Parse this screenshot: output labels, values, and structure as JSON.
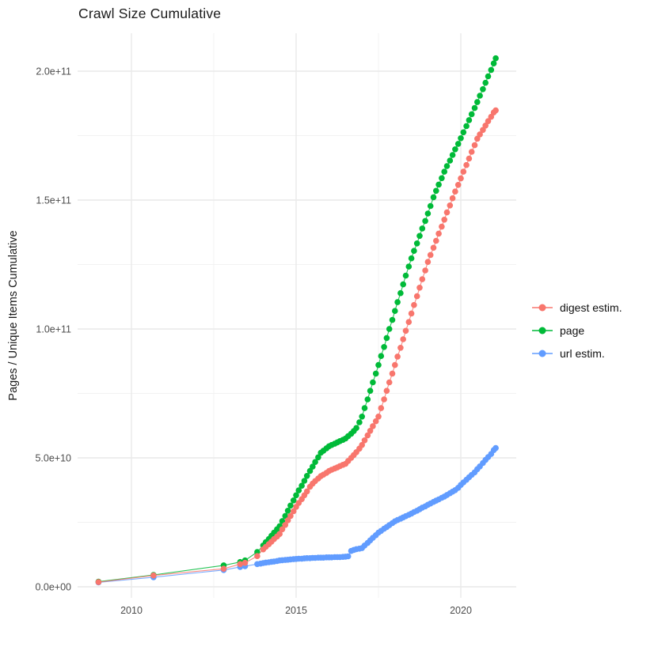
{
  "chart": {
    "title": "Crawl Size Cumulative",
    "y_axis_title": "Pages / Unique Items Cumulative",
    "colors": {
      "digest": "#F8766D",
      "page": "#00BA38",
      "url": "#619CFF",
      "grid_major": "#E9E9E9",
      "grid_minor": "#F2F2F2",
      "tick_text": "#4D4D4D",
      "background": "#FFFFFF"
    }
  },
  "chart_data": {
    "type": "line",
    "title": "Crawl Size Cumulative",
    "xlabel": "",
    "ylabel": "Pages / Unique Items Cumulative",
    "x_unit": "year",
    "value_unit": "1e9 (billions of pages / unique items)",
    "xlim": [
      2008.6,
      2021.6
    ],
    "ylim": [
      0,
      215000000000.0
    ],
    "grid": true,
    "legend_position": "right",
    "x_major_ticks": [
      2010,
      2015,
      2020
    ],
    "x_minor_ticks": [
      2012.5,
      2017.5
    ],
    "x_tick_labels": [
      "2010",
      "2015",
      "2020"
    ],
    "y_major_ticks_e9": [
      0,
      50,
      100,
      150,
      200
    ],
    "y_minor_ticks_e9": [
      25,
      75,
      125,
      175
    ],
    "y_tick_labels": [
      "0.0e+00",
      "5.0e+10",
      "1.0e+11",
      "1.5e+11",
      "2.0e+11"
    ],
    "series": [
      {
        "name": "url estim.",
        "color": "#619CFF",
        "points_year_value_e9": [
          [
            2009.0,
            1.7
          ],
          [
            2010.67,
            3.7
          ],
          [
            2012.8,
            6.5
          ],
          [
            2013.3,
            7.7
          ],
          [
            2013.45,
            8.0
          ],
          [
            2013.82,
            8.8
          ],
          [
            2013.92,
            9.0
          ],
          [
            2014.0,
            9.2
          ],
          [
            2014.08,
            9.4
          ],
          [
            2014.17,
            9.5
          ],
          [
            2014.25,
            9.7
          ],
          [
            2014.33,
            9.8
          ],
          [
            2014.42,
            10.0
          ],
          [
            2014.5,
            10.2
          ],
          [
            2014.58,
            10.3
          ],
          [
            2014.67,
            10.4
          ],
          [
            2014.75,
            10.5
          ],
          [
            2014.83,
            10.6
          ],
          [
            2014.92,
            10.7
          ],
          [
            2015.0,
            10.8
          ],
          [
            2015.08,
            10.9
          ],
          [
            2015.17,
            10.9
          ],
          [
            2015.25,
            11.0
          ],
          [
            2015.33,
            11.1
          ],
          [
            2015.42,
            11.1
          ],
          [
            2015.5,
            11.2
          ],
          [
            2015.58,
            11.2
          ],
          [
            2015.67,
            11.3
          ],
          [
            2015.75,
            11.3
          ],
          [
            2015.83,
            11.3
          ],
          [
            2015.92,
            11.4
          ],
          [
            2016.0,
            11.4
          ],
          [
            2016.08,
            11.4
          ],
          [
            2016.17,
            11.5
          ],
          [
            2016.25,
            11.5
          ],
          [
            2016.33,
            11.5
          ],
          [
            2016.42,
            11.6
          ],
          [
            2016.5,
            11.7
          ],
          [
            2016.58,
            11.8
          ],
          [
            2016.67,
            13.9
          ],
          [
            2016.75,
            14.3
          ],
          [
            2016.83,
            14.6
          ],
          [
            2016.92,
            14.8
          ],
          [
            2017.0,
            15.0
          ],
          [
            2017.08,
            16.0
          ],
          [
            2017.17,
            17.0
          ],
          [
            2017.25,
            18.0
          ],
          [
            2017.33,
            19.0
          ],
          [
            2017.42,
            20.0
          ],
          [
            2017.5,
            21.0
          ],
          [
            2017.58,
            21.7
          ],
          [
            2017.67,
            22.5
          ],
          [
            2017.75,
            23.2
          ],
          [
            2017.83,
            23.9
          ],
          [
            2017.92,
            24.7
          ],
          [
            2018.0,
            25.4
          ],
          [
            2018.08,
            25.9
          ],
          [
            2018.17,
            26.4
          ],
          [
            2018.25,
            26.9
          ],
          [
            2018.33,
            27.4
          ],
          [
            2018.42,
            27.9
          ],
          [
            2018.5,
            28.4
          ],
          [
            2018.58,
            29.0
          ],
          [
            2018.67,
            29.5
          ],
          [
            2018.75,
            30.1
          ],
          [
            2018.83,
            30.7
          ],
          [
            2018.92,
            31.2
          ],
          [
            2019.0,
            31.8
          ],
          [
            2019.08,
            32.3
          ],
          [
            2019.17,
            32.9
          ],
          [
            2019.25,
            33.4
          ],
          [
            2019.33,
            33.9
          ],
          [
            2019.42,
            34.5
          ],
          [
            2019.5,
            35.0
          ],
          [
            2019.58,
            35.6
          ],
          [
            2019.67,
            36.3
          ],
          [
            2019.75,
            36.9
          ],
          [
            2019.83,
            37.5
          ],
          [
            2019.92,
            38.4
          ],
          [
            2020.0,
            39.5
          ],
          [
            2020.08,
            40.5
          ],
          [
            2020.17,
            41.5
          ],
          [
            2020.25,
            42.5
          ],
          [
            2020.33,
            43.4
          ],
          [
            2020.42,
            44.4
          ],
          [
            2020.5,
            45.6
          ],
          [
            2020.58,
            46.7
          ],
          [
            2020.67,
            48.0
          ],
          [
            2020.75,
            49.2
          ],
          [
            2020.83,
            50.3
          ],
          [
            2020.92,
            51.5
          ],
          [
            2021.0,
            53.0
          ],
          [
            2021.06,
            53.8
          ]
        ]
      },
      {
        "name": "page",
        "color": "#00BA38",
        "points_year_value_e9": [
          [
            2009.0,
            2.0
          ],
          [
            2010.67,
            4.6
          ],
          [
            2012.8,
            8.3
          ],
          [
            2013.3,
            9.6
          ],
          [
            2013.45,
            10.2
          ],
          [
            2013.82,
            13.5
          ],
          [
            2014.0,
            16.0
          ],
          [
            2014.08,
            17.3
          ],
          [
            2014.17,
            18.5
          ],
          [
            2014.25,
            19.8
          ],
          [
            2014.33,
            21.0
          ],
          [
            2014.42,
            22.3
          ],
          [
            2014.5,
            23.5
          ],
          [
            2014.58,
            25.5
          ],
          [
            2014.67,
            27.5
          ],
          [
            2014.75,
            29.5
          ],
          [
            2014.83,
            31.5
          ],
          [
            2014.92,
            33.5
          ],
          [
            2015.0,
            35.5
          ],
          [
            2015.08,
            37.4
          ],
          [
            2015.17,
            39.2
          ],
          [
            2015.25,
            41.1
          ],
          [
            2015.33,
            43.0
          ],
          [
            2015.42,
            44.9
          ],
          [
            2015.5,
            46.6
          ],
          [
            2015.58,
            48.4
          ],
          [
            2015.67,
            50.2
          ],
          [
            2015.75,
            52.0
          ],
          [
            2015.83,
            52.8
          ],
          [
            2015.92,
            53.7
          ],
          [
            2016.0,
            54.5
          ],
          [
            2016.08,
            55.0
          ],
          [
            2016.17,
            55.5
          ],
          [
            2016.25,
            56.0
          ],
          [
            2016.33,
            56.5
          ],
          [
            2016.42,
            57.0
          ],
          [
            2016.5,
            57.5
          ],
          [
            2016.58,
            58.4
          ],
          [
            2016.67,
            59.4
          ],
          [
            2016.75,
            60.4
          ],
          [
            2016.83,
            61.6
          ],
          [
            2016.92,
            63.8
          ],
          [
            2017.0,
            66.0
          ],
          [
            2017.08,
            69.3
          ],
          [
            2017.17,
            72.7
          ],
          [
            2017.25,
            76.0
          ],
          [
            2017.33,
            79.3
          ],
          [
            2017.42,
            82.7
          ],
          [
            2017.5,
            86.0
          ],
          [
            2017.58,
            89.5
          ],
          [
            2017.67,
            93.0
          ],
          [
            2017.75,
            96.5
          ],
          [
            2017.83,
            100.0
          ],
          [
            2017.92,
            103.5
          ],
          [
            2018.0,
            107.0
          ],
          [
            2018.08,
            110.4
          ],
          [
            2018.17,
            113.9
          ],
          [
            2018.25,
            117.3
          ],
          [
            2018.33,
            120.7
          ],
          [
            2018.42,
            124.2
          ],
          [
            2018.5,
            127.4
          ],
          [
            2018.58,
            130.3
          ],
          [
            2018.67,
            133.2
          ],
          [
            2018.75,
            136.1
          ],
          [
            2018.83,
            139.0
          ],
          [
            2018.92,
            141.9
          ],
          [
            2019.0,
            144.8
          ],
          [
            2019.08,
            147.7
          ],
          [
            2019.17,
            151.1
          ],
          [
            2019.25,
            153.6
          ],
          [
            2019.33,
            156.0
          ],
          [
            2019.42,
            158.5
          ],
          [
            2019.5,
            161.0
          ],
          [
            2019.58,
            163.2
          ],
          [
            2019.67,
            165.3
          ],
          [
            2019.75,
            167.5
          ],
          [
            2019.83,
            169.7
          ],
          [
            2019.92,
            171.8
          ],
          [
            2020.0,
            174.0
          ],
          [
            2020.08,
            176.3
          ],
          [
            2020.17,
            178.7
          ],
          [
            2020.25,
            181.0
          ],
          [
            2020.33,
            183.3
          ],
          [
            2020.42,
            185.7
          ],
          [
            2020.5,
            188.0
          ],
          [
            2020.58,
            190.5
          ],
          [
            2020.67,
            193.0
          ],
          [
            2020.75,
            195.5
          ],
          [
            2020.83,
            198.0
          ],
          [
            2020.92,
            200.5
          ],
          [
            2021.0,
            203.0
          ],
          [
            2021.06,
            205.0
          ]
        ]
      },
      {
        "name": "digest estim.",
        "color": "#F8766D",
        "points_year_value_e9": [
          [
            2009.0,
            1.8
          ],
          [
            2010.67,
            4.4
          ],
          [
            2012.8,
            7.0
          ],
          [
            2013.3,
            8.8
          ],
          [
            2013.45,
            9.3
          ],
          [
            2013.82,
            11.9
          ],
          [
            2014.0,
            14.5
          ],
          [
            2014.08,
            15.5
          ],
          [
            2014.17,
            16.5
          ],
          [
            2014.25,
            17.5
          ],
          [
            2014.33,
            18.5
          ],
          [
            2014.42,
            19.5
          ],
          [
            2014.5,
            20.5
          ],
          [
            2014.58,
            22.3
          ],
          [
            2014.67,
            24.0
          ],
          [
            2014.75,
            25.8
          ],
          [
            2014.83,
            27.5
          ],
          [
            2014.92,
            29.3
          ],
          [
            2015.0,
            31.0
          ],
          [
            2015.08,
            32.5
          ],
          [
            2015.17,
            34.0
          ],
          [
            2015.25,
            35.5
          ],
          [
            2015.33,
            37.0
          ],
          [
            2015.42,
            38.8
          ],
          [
            2015.5,
            40.0
          ],
          [
            2015.58,
            41.0
          ],
          [
            2015.67,
            42.0
          ],
          [
            2015.75,
            42.9
          ],
          [
            2015.83,
            43.5
          ],
          [
            2015.92,
            44.2
          ],
          [
            2016.0,
            44.9
          ],
          [
            2016.08,
            45.4
          ],
          [
            2016.17,
            45.9
          ],
          [
            2016.25,
            46.3
          ],
          [
            2016.33,
            46.8
          ],
          [
            2016.42,
            47.3
          ],
          [
            2016.5,
            47.7
          ],
          [
            2016.58,
            48.8
          ],
          [
            2016.67,
            50.0
          ],
          [
            2016.75,
            51.1
          ],
          [
            2016.83,
            52.2
          ],
          [
            2016.92,
            53.6
          ],
          [
            2017.0,
            55.0
          ],
          [
            2017.08,
            56.8
          ],
          [
            2017.17,
            58.7
          ],
          [
            2017.25,
            60.5
          ],
          [
            2017.33,
            62.3
          ],
          [
            2017.42,
            64.2
          ],
          [
            2017.5,
            66.0
          ],
          [
            2017.58,
            69.3
          ],
          [
            2017.67,
            72.7
          ],
          [
            2017.75,
            76.0
          ],
          [
            2017.83,
            79.3
          ],
          [
            2017.92,
            82.7
          ],
          [
            2018.0,
            86.0
          ],
          [
            2018.08,
            89.3
          ],
          [
            2018.17,
            92.7
          ],
          [
            2018.25,
            96.0
          ],
          [
            2018.33,
            99.3
          ],
          [
            2018.42,
            102.7
          ],
          [
            2018.5,
            106.0
          ],
          [
            2018.58,
            109.3
          ],
          [
            2018.67,
            112.7
          ],
          [
            2018.75,
            116.0
          ],
          [
            2018.83,
            119.3
          ],
          [
            2018.92,
            122.7
          ],
          [
            2019.0,
            126.0
          ],
          [
            2019.08,
            128.7
          ],
          [
            2019.17,
            131.5
          ],
          [
            2019.25,
            134.2
          ],
          [
            2019.33,
            137.0
          ],
          [
            2019.42,
            139.7
          ],
          [
            2019.5,
            142.4
          ],
          [
            2019.58,
            145.2
          ],
          [
            2019.67,
            147.9
          ],
          [
            2019.75,
            150.7
          ],
          [
            2019.83,
            153.3
          ],
          [
            2019.92,
            155.9
          ],
          [
            2020.0,
            158.4
          ],
          [
            2020.08,
            161.0
          ],
          [
            2020.17,
            163.6
          ],
          [
            2020.25,
            166.1
          ],
          [
            2020.33,
            168.7
          ],
          [
            2020.42,
            171.3
          ],
          [
            2020.5,
            173.8
          ],
          [
            2020.58,
            175.5
          ],
          [
            2020.67,
            177.2
          ],
          [
            2020.75,
            178.9
          ],
          [
            2020.83,
            180.6
          ],
          [
            2020.92,
            182.3
          ],
          [
            2021.0,
            184.0
          ],
          [
            2021.06,
            184.8
          ]
        ]
      }
    ]
  },
  "legend": {
    "entries": [
      {
        "label": "digest estim.",
        "color": "#F8766D"
      },
      {
        "label": "page",
        "color": "#00BA38"
      },
      {
        "label": "url estim.",
        "color": "#619CFF"
      }
    ]
  }
}
